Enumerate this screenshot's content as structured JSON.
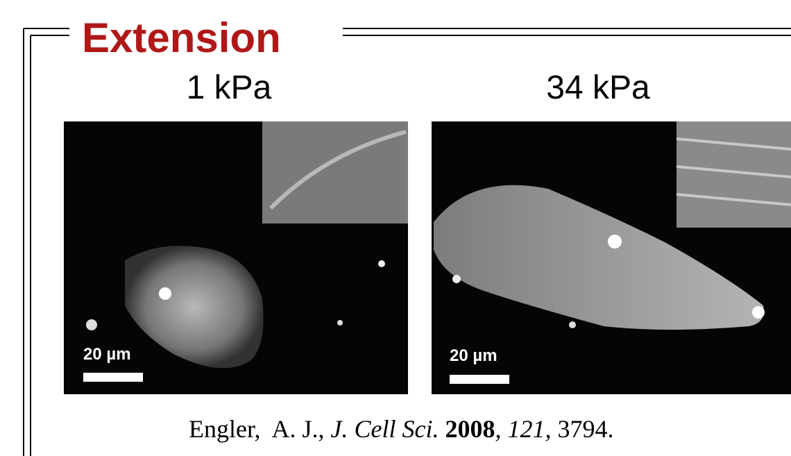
{
  "title": "Extension",
  "panels": [
    {
      "label": "1 kPa",
      "scale_bar": "20 µm"
    },
    {
      "label": "34 kPa",
      "scale_bar": "20 µm"
    }
  ],
  "citation": {
    "authors": "Engler,  A. J.,",
    "journal": "J. Cell Sci.",
    "year": "2008",
    "volume": ", 121,",
    "pages": "3794."
  }
}
